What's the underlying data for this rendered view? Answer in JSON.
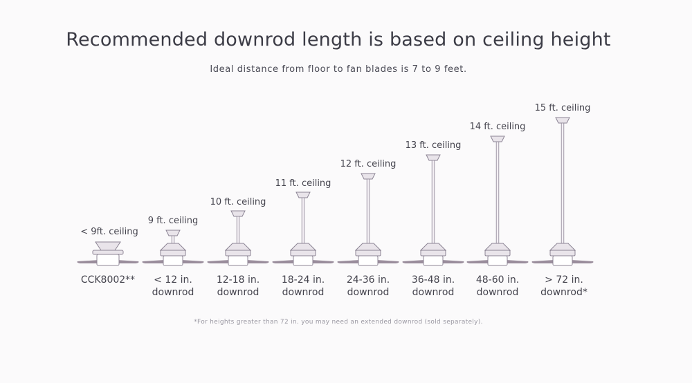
{
  "title": "Recommended downrod length is based on ceiling height",
  "subtitle": "Ideal distance from floor to fan blades is 7 to 9 feet.",
  "footnote": "*For heights greater than 72 in. you may need an extended downrod (sold separately).",
  "fans": [
    {
      "ceiling": "< 9ft. ceiling",
      "rod_line1": "CCK8002**",
      "rod_line2": ""
    },
    {
      "ceiling": "9 ft. ceiling",
      "rod_line1": "< 12 in.",
      "rod_line2": "downrod"
    },
    {
      "ceiling": "10 ft. ceiling",
      "rod_line1": "12-18 in.",
      "rod_line2": "downrod"
    },
    {
      "ceiling": "11 ft. ceiling",
      "rod_line1": "18-24 in.",
      "rod_line2": "downrod"
    },
    {
      "ceiling": "12 ft. ceiling",
      "rod_line1": "24-36 in.",
      "rod_line2": "downrod"
    },
    {
      "ceiling": "13 ft. ceiling",
      "rod_line1": "36-48 in.",
      "rod_line2": "downrod"
    },
    {
      "ceiling": "14 ft. ceiling",
      "rod_line1": "48-60 in.",
      "rod_line2": "downrod"
    },
    {
      "ceiling": "15 ft. ceiling",
      "rod_line1": "> 72 in.",
      "rod_line2": "downrod*"
    }
  ],
  "colors": {
    "fan_body": "#e9e4ea",
    "fan_outline": "#8c8494",
    "blade": "#9a8d9c",
    "text": "#45444e"
  }
}
